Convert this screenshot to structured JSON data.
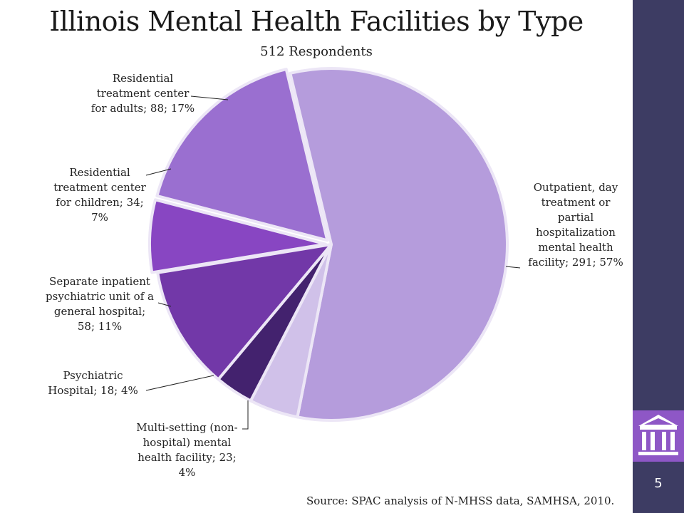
{
  "slide": {
    "page_number": "5",
    "source": "Source: SPAC analysis of N-MHSS data, SAMHSA, 2010.",
    "logo_icon": "building-columns-icon"
  },
  "colors": {
    "sidebar": "#3d3c63",
    "logo_box": "#8e57c6"
  },
  "chart_data": {
    "type": "pie",
    "title": "Illinois Mental Health Facilities by Type",
    "subtitle": "512 Respondents",
    "slices": [
      {
        "label_lines": [
          "Outpatient, day",
          "treatment or",
          "partial",
          "hospitalization",
          "mental health",
          "facility; 291; 57%"
        ],
        "value": 291,
        "percent": "57%",
        "color": "#b59cdc"
      },
      {
        "label_lines": [
          "Multi-setting (non-",
          "hospital) mental",
          "health facility; 23;",
          "4%"
        ],
        "value": 23,
        "percent": "4%",
        "color": "#d0c1e9"
      },
      {
        "label_lines": [
          "Psychiatric",
          "Hospital; 18; 4%"
        ],
        "value": 18,
        "percent": "4%",
        "color": "#43226e"
      },
      {
        "label_lines": [
          "Separate inpatient",
          "psychiatric unit of a",
          "general hospital;",
          "58; 11%"
        ],
        "value": 58,
        "percent": "11%",
        "color": "#7238a8"
      },
      {
        "label_lines": [
          "Residential",
          "treatment center",
          "for children; 34;",
          "7%"
        ],
        "value": 34,
        "percent": "7%",
        "color": "#8846c2"
      },
      {
        "label_lines": [
          "Residential",
          "treatment center",
          "for adults; 88; 17%"
        ],
        "value": 88,
        "percent": "17%",
        "color": "#9a6fd0"
      }
    ]
  }
}
